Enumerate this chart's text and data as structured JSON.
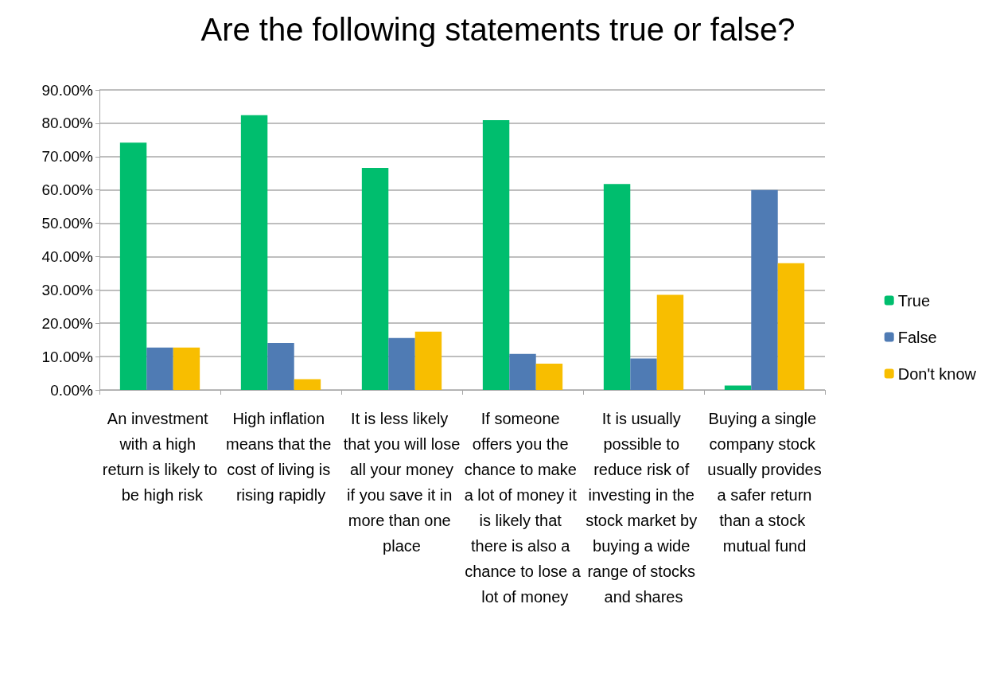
{
  "chart_data": {
    "type": "bar",
    "title": "Are the following statements true or false?",
    "categories": [
      "An investment with a high return is likely to be high risk",
      "High inflation means that the cost of living is rising rapidly",
      "It is less likely that you will lose all your money if you save it in more than one place",
      "If someone offers you the chance to make a lot of money it is likely that there is also a chance to lose a lot of money",
      "It is usually possible to reduce risk of investing in the stock market by buying a wide range of stocks and shares",
      "Buying a single company stock usually provides a safer return than a stock mutual fund"
    ],
    "series": [
      {
        "name": "True",
        "color": "#00be6e",
        "values": [
          74.2,
          82.4,
          66.6,
          80.9,
          61.8,
          1.3
        ]
      },
      {
        "name": "False",
        "color": "#4f7bb4",
        "values": [
          12.7,
          14.1,
          15.6,
          10.8,
          9.4,
          60.0
        ]
      },
      {
        "name": "Don't know",
        "color": "#f8be00",
        "values": [
          12.7,
          3.2,
          17.5,
          7.9,
          28.5,
          38.0
        ]
      }
    ],
    "ylim": [
      0,
      90
    ],
    "yticks": [
      {
        "value": 0,
        "label": "0.00%"
      },
      {
        "value": 10,
        "label": "10.00%"
      },
      {
        "value": 20,
        "label": "20.00%"
      },
      {
        "value": 30,
        "label": "30.00%"
      },
      {
        "value": 40,
        "label": "40.00%"
      },
      {
        "value": 50,
        "label": "50.00%"
      },
      {
        "value": 60,
        "label": "60.00%"
      },
      {
        "value": 70,
        "label": "70.00%"
      },
      {
        "value": 80,
        "label": "80.00%"
      },
      {
        "value": 90,
        "label": "90.00%"
      }
    ],
    "grid": "y",
    "legend": "right"
  }
}
